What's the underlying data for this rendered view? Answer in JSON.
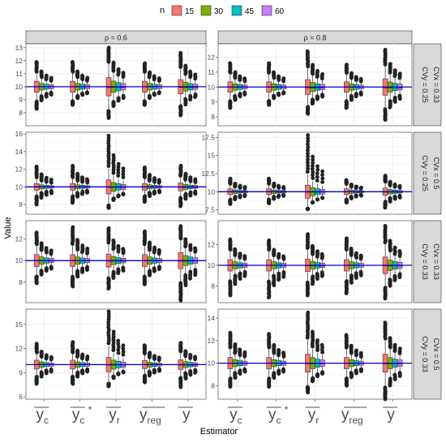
{
  "chart_data": {
    "type": "boxplot",
    "title": "",
    "xlabel": "Estimator",
    "ylabel": "Value",
    "legend": {
      "title": "n",
      "placement": "top",
      "entries": [
        "15",
        "30",
        "45",
        "60"
      ]
    },
    "colors": {
      "15": "#f8766d",
      "30": "#7cae00",
      "45": "#00bfc4",
      "60": "#c77cff",
      "reference_line": "#0000cc",
      "strip": "#d9d9d9",
      "panel_bg": "#ffffff",
      "grid": "#ebebeb"
    },
    "grid": true,
    "reference_value": 10,
    "categories": [
      {
        "base": "y",
        "sub": "c",
        "sup": ""
      },
      {
        "base": "y",
        "sub": "c",
        "sup": "*"
      },
      {
        "base": "y",
        "sub": "r",
        "sup": ""
      },
      {
        "base": "y",
        "sub": "reg",
        "sup": ""
      },
      {
        "base": "y",
        "sub": "",
        "sup": ""
      }
    ],
    "column_strips": [
      "ρ = 0.6",
      "ρ = 0.8"
    ],
    "row_strips": [
      {
        "cvx": "CVx = 0.33",
        "cvy": "CVy = 0.25"
      },
      {
        "cvx": "CVx = 0.5",
        "cvy": "CVy = 0.25"
      },
      {
        "cvx": "CVx = 0.33",
        "cvy": "CVy = 0.33"
      },
      {
        "cvx": "CVx = 0.5",
        "cvy": "CVy = 0.33"
      }
    ],
    "panels": [
      {
        "row": 0,
        "col": 0,
        "ylim": [
          7.0,
          13.3
        ],
        "yticks": [
          8,
          9,
          10,
          11,
          12,
          13
        ],
        "outlier_range": [
          [
            8.3,
            11.9
          ],
          [
            8.6,
            11.9
          ],
          [
            7.6,
            13.0
          ],
          [
            8.6,
            11.8
          ],
          [
            7.8,
            12.6
          ]
        ],
        "box_half": [
          0.42,
          0.42,
          0.7,
          0.42,
          0.55
        ]
      },
      {
        "row": 0,
        "col": 1,
        "ylim": [
          7.4,
          12.9
        ],
        "yticks": [
          8,
          9,
          10,
          11,
          12
        ],
        "outlier_range": [
          [
            8.6,
            11.6
          ],
          [
            8.8,
            11.6
          ],
          [
            8.2,
            12.4
          ],
          [
            8.6,
            11.5
          ],
          [
            7.8,
            12.5
          ]
        ],
        "box_half": [
          0.35,
          0.35,
          0.5,
          0.35,
          0.55
        ]
      },
      {
        "row": 1,
        "col": 0,
        "ylim": [
          6.9,
          16.2
        ],
        "yticks": [
          8,
          10,
          12,
          14,
          16
        ],
        "outlier_range": [
          [
            8.0,
            12.3
          ],
          [
            8.2,
            12.4
          ],
          [
            7.6,
            15.8
          ],
          [
            8.3,
            12.2
          ],
          [
            7.8,
            12.4
          ]
        ],
        "box_half": [
          0.38,
          0.38,
          0.8,
          0.38,
          0.45
        ]
      },
      {
        "row": 1,
        "col": 1,
        "ylim": [
          6.9,
          18.2
        ],
        "yticks": [
          7.5,
          10.0,
          12.5,
          15.0,
          17.5
        ],
        "outlier_range": [
          [
            8.3,
            11.8
          ],
          [
            8.4,
            11.8
          ],
          [
            7.6,
            17.8
          ],
          [
            8.5,
            11.6
          ],
          [
            7.8,
            12.2
          ]
        ],
        "box_half": [
          0.4,
          0.4,
          0.9,
          0.4,
          0.5
        ]
      },
      {
        "row": 2,
        "col": 0,
        "ylim": [
          6.1,
          13.7
        ],
        "yticks": [
          8,
          10,
          12
        ],
        "outlier_range": [
          [
            7.9,
            12.6
          ],
          [
            7.6,
            13.1
          ],
          [
            7.4,
            13.0
          ],
          [
            7.8,
            12.7
          ],
          [
            6.3,
            13.2
          ]
        ],
        "box_half": [
          0.55,
          0.55,
          0.6,
          0.55,
          0.75
        ]
      },
      {
        "row": 2,
        "col": 1,
        "ylim": [
          6.4,
          14.3
        ],
        "yticks": [
          8,
          10,
          12
        ],
        "outlier_range": [
          [
            7.1,
            12.5
          ],
          [
            6.9,
            12.4
          ],
          [
            7.1,
            13.0
          ],
          [
            7.3,
            12.6
          ],
          [
            6.8,
            13.8
          ]
        ],
        "box_half": [
          0.55,
          0.55,
          0.6,
          0.55,
          0.8
        ]
      },
      {
        "row": 3,
        "col": 0,
        "ylim": [
          5.7,
          16.9
        ],
        "yticks": [
          6,
          9,
          12,
          15
        ],
        "outlier_range": [
          [
            7.6,
            12.6
          ],
          [
            7.6,
            12.8
          ],
          [
            7.3,
            16.6
          ],
          [
            7.8,
            12.4
          ],
          [
            7.2,
            12.7
          ]
        ],
        "box_half": [
          0.55,
          0.55,
          0.9,
          0.5,
          0.6
        ]
      },
      {
        "row": 3,
        "col": 1,
        "ylim": [
          6.8,
          14.8
        ],
        "yticks": [
          8,
          10,
          12,
          14
        ],
        "outlier_range": [
          [
            7.9,
            12.7
          ],
          [
            7.9,
            12.6
          ],
          [
            7.4,
            14.5
          ],
          [
            8.0,
            12.5
          ],
          [
            6.8,
            13.6
          ]
        ],
        "box_half": [
          0.5,
          0.5,
          0.8,
          0.5,
          0.8
        ]
      }
    ],
    "spread_by_n": [
      1.0,
      0.62,
      0.45,
      0.36
    ]
  }
}
